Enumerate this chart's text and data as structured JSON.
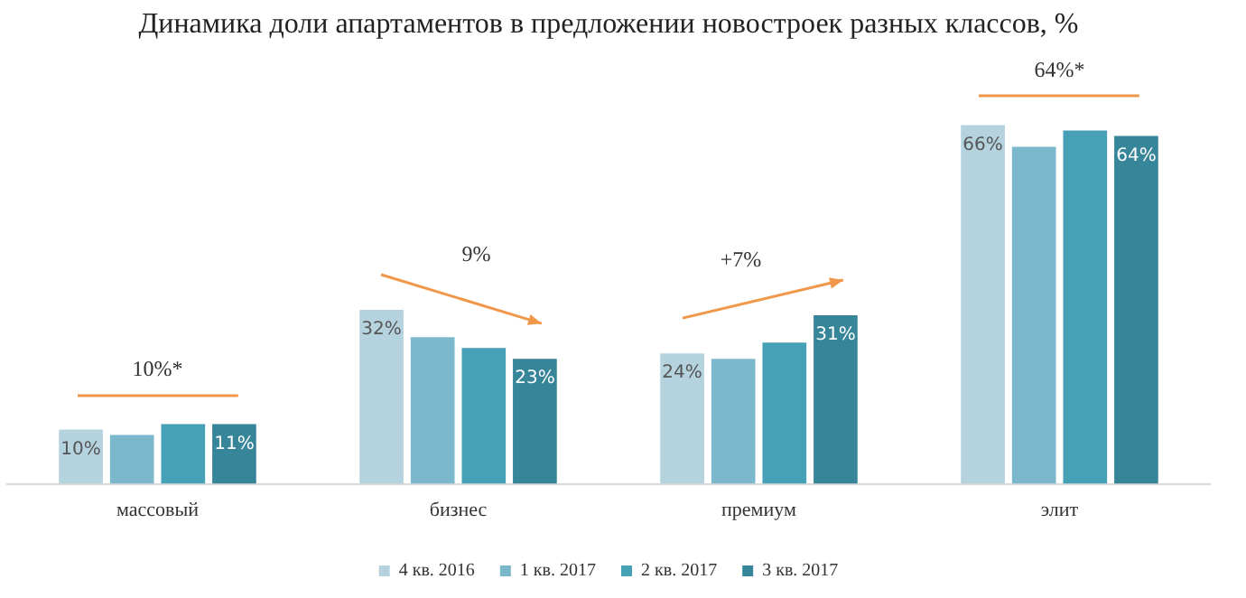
{
  "chart_data": {
    "type": "bar",
    "title": "Динамика доли апартаментов в предложении новостроек разных классов, %",
    "categories": [
      "массовый",
      "бизнес",
      "премиум",
      "элит"
    ],
    "series": [
      {
        "name": "4 кв. 2016",
        "color": "#b4d3de",
        "values": [
          10,
          32,
          24,
          66
        ],
        "value_labels": [
          "10%",
          "32%",
          "24%",
          "66%"
        ]
      },
      {
        "name": "1 кв. 2017",
        "color": "#7cb8cc",
        "values": [
          9,
          27,
          23,
          62
        ],
        "value_labels": [
          null,
          null,
          null,
          null
        ]
      },
      {
        "name": "2 кв. 2017",
        "color": "#46a0b6",
        "values": [
          11,
          25,
          26,
          65
        ],
        "value_labels": [
          null,
          null,
          null,
          null
        ]
      },
      {
        "name": "3 кв. 2017",
        "color": "#378599",
        "values": [
          11,
          23,
          31,
          64
        ],
        "value_labels": [
          "11%",
          "23%",
          "31%",
          "64%"
        ]
      }
    ],
    "annotations": [
      "10%*",
      "9%",
      "+7%",
      "64%*"
    ],
    "legend": "bottom",
    "grid": false
  }
}
